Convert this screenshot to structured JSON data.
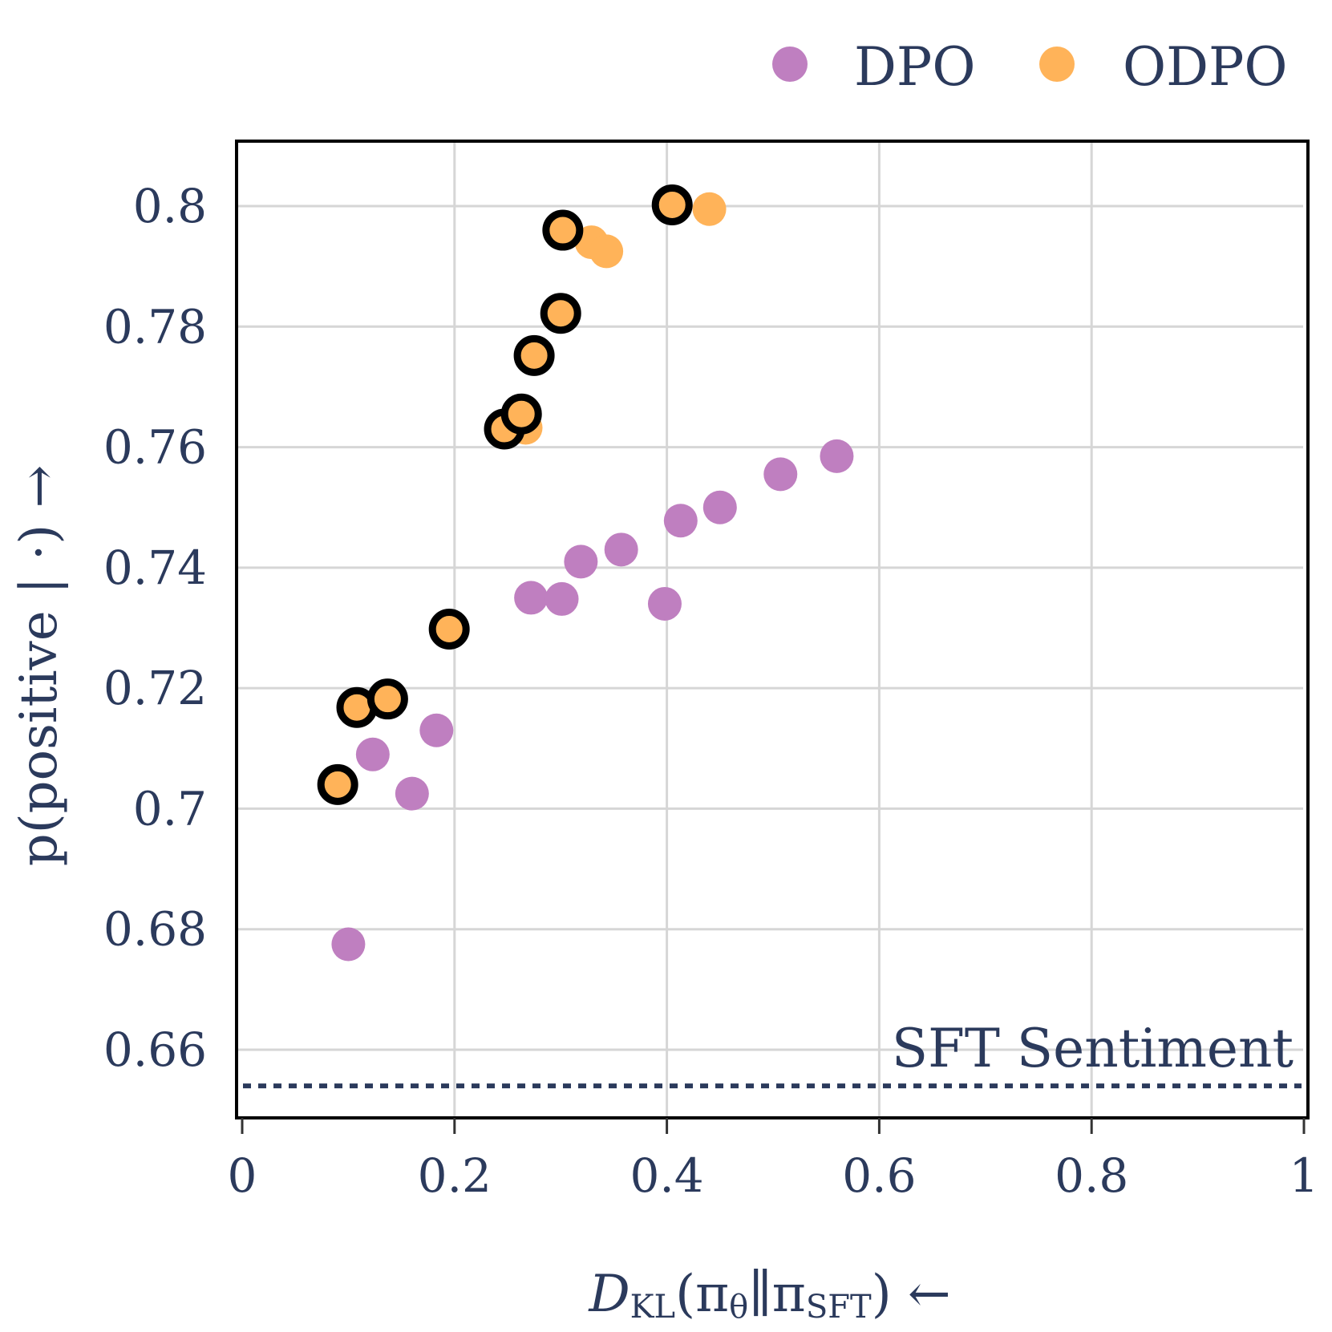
{
  "chart_data": {
    "type": "scatter",
    "title": "",
    "xlabel": "D_KL(π_θ || π_SFT) ←",
    "ylabel": "p(positive | ·) →",
    "xlim": [
      0,
      1
    ],
    "ylim": [
      0.6465,
      0.8105
    ],
    "x_ticks": [
      0,
      0.2,
      0.4,
      0.6,
      0.8,
      1
    ],
    "x_tick_labels": [
      "0",
      "0.2",
      "0.4",
      "0.6",
      "0.8",
      "1"
    ],
    "y_ticks": [
      0.66,
      0.68,
      0.7,
      0.72,
      0.74,
      0.76,
      0.78,
      0.8
    ],
    "y_tick_labels": [
      "0.66",
      "0.68",
      "0.7",
      "0.72",
      "0.74",
      "0.76",
      "0.78",
      "0.8"
    ],
    "grid": true,
    "legend_position": "top-right",
    "reference_line": {
      "label": "SFT Sentiment",
      "y": 0.654,
      "style": "dotted"
    },
    "series": [
      {
        "name": "DPO",
        "color": "#bf7fc0",
        "points": [
          {
            "x": 0.1,
            "y": 0.6775
          },
          {
            "x": 0.123,
            "y": 0.709
          },
          {
            "x": 0.16,
            "y": 0.7025
          },
          {
            "x": 0.183,
            "y": 0.713
          },
          {
            "x": 0.272,
            "y": 0.735
          },
          {
            "x": 0.301,
            "y": 0.7348
          },
          {
            "x": 0.319,
            "y": 0.741
          },
          {
            "x": 0.357,
            "y": 0.743
          },
          {
            "x": 0.398,
            "y": 0.734
          },
          {
            "x": 0.413,
            "y": 0.7478
          },
          {
            "x": 0.45,
            "y": 0.75
          },
          {
            "x": 0.507,
            "y": 0.7555
          },
          {
            "x": 0.56,
            "y": 0.7585
          }
        ]
      },
      {
        "name": "ODPO",
        "color": "#ffb359",
        "points": [
          {
            "x": 0.09,
            "y": 0.704,
            "highlighted": true
          },
          {
            "x": 0.108,
            "y": 0.7168,
            "highlighted": true
          },
          {
            "x": 0.137,
            "y": 0.7182,
            "highlighted": true
          },
          {
            "x": 0.195,
            "y": 0.7298,
            "highlighted": true
          },
          {
            "x": 0.247,
            "y": 0.763,
            "highlighted": true
          },
          {
            "x": 0.263,
            "y": 0.7655,
            "highlighted": true
          },
          {
            "x": 0.267,
            "y": 0.7632,
            "highlighted": false
          },
          {
            "x": 0.275,
            "y": 0.7752,
            "highlighted": true
          },
          {
            "x": 0.3,
            "y": 0.7822,
            "highlighted": true
          },
          {
            "x": 0.302,
            "y": 0.796,
            "highlighted": true
          },
          {
            "x": 0.329,
            "y": 0.794,
            "highlighted": false
          },
          {
            "x": 0.343,
            "y": 0.7925,
            "highlighted": false
          },
          {
            "x": 0.405,
            "y": 0.8002,
            "highlighted": true
          },
          {
            "x": 0.44,
            "y": 0.7995,
            "highlighted": false
          }
        ]
      }
    ]
  },
  "axis_label": {
    "x_main": "D",
    "x_sub": "KL",
    "x_rest": "(π",
    "x_sub2": "θ",
    "x_mid": "∥π",
    "x_sub3": "SFT",
    "x_end": ") ←",
    "y_text": "p(positive | ·) →"
  }
}
